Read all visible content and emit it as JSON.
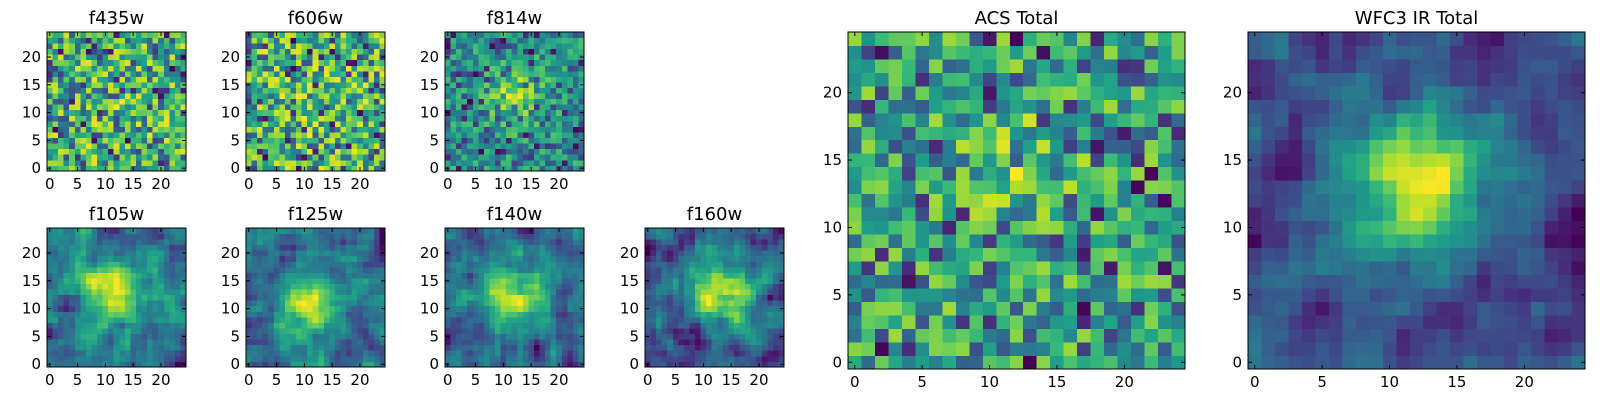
{
  "chart_data": [
    {
      "type": "heatmap",
      "title": "f435w",
      "x_ticks": [
        0,
        5,
        10,
        15,
        20
      ],
      "y_ticks": [
        0,
        5,
        10,
        15,
        20
      ],
      "xlim": [
        -0.5,
        24.5
      ],
      "ylim": [
        -0.5,
        24.5
      ],
      "colormap": "viridis",
      "grid": false,
      "pattern": {
        "seed": 11,
        "noise": 0.95,
        "blob": 0.05,
        "cx": 12,
        "cy": 12,
        "sigma": 4,
        "smooth": 0
      }
    },
    {
      "type": "heatmap",
      "title": "f606w",
      "x_ticks": [
        0,
        5,
        10,
        15,
        20
      ],
      "y_ticks": [
        0,
        5,
        10,
        15,
        20
      ],
      "xlim": [
        -0.5,
        24.5
      ],
      "ylim": [
        -0.5,
        24.5
      ],
      "colormap": "viridis",
      "grid": false,
      "pattern": {
        "seed": 23,
        "noise": 0.95,
        "blob": 0.05,
        "cx": 12,
        "cy": 12,
        "sigma": 4,
        "smooth": 0
      }
    },
    {
      "type": "heatmap",
      "title": "f814w",
      "x_ticks": [
        0,
        5,
        10,
        15,
        20
      ],
      "y_ticks": [
        0,
        5,
        10,
        15,
        20
      ],
      "xlim": [
        -0.5,
        24.5
      ],
      "ylim": [
        -0.5,
        24.5
      ],
      "colormap": "viridis",
      "grid": false,
      "pattern": {
        "seed": 37,
        "noise": 0.7,
        "blob": 0.3,
        "cx": 12,
        "cy": 13,
        "sigma": 3.5,
        "smooth": 0
      }
    },
    {
      "type": "heatmap",
      "title": "f105w",
      "x_ticks": [
        0,
        5,
        10,
        15,
        20
      ],
      "y_ticks": [
        0,
        5,
        10,
        15,
        20
      ],
      "xlim": [
        -0.5,
        24.5
      ],
      "ylim": [
        -0.5,
        24.5
      ],
      "colormap": "viridis",
      "grid": false,
      "pattern": {
        "seed": 41,
        "noise": 0.55,
        "blob": 0.45,
        "cx": 12,
        "cy": 13,
        "sigma": 4,
        "smooth": 1
      }
    },
    {
      "type": "heatmap",
      "title": "f125w",
      "x_ticks": [
        0,
        5,
        10,
        15,
        20
      ],
      "y_ticks": [
        0,
        5,
        10,
        15,
        20
      ],
      "xlim": [
        -0.5,
        24.5
      ],
      "ylim": [
        -0.5,
        24.5
      ],
      "colormap": "viridis",
      "grid": false,
      "pattern": {
        "seed": 53,
        "noise": 0.55,
        "blob": 0.45,
        "cx": 11,
        "cy": 10,
        "sigma": 4,
        "smooth": 1
      }
    },
    {
      "type": "heatmap",
      "title": "f140w",
      "x_ticks": [
        0,
        5,
        10,
        15,
        20
      ],
      "y_ticks": [
        0,
        5,
        10,
        15,
        20
      ],
      "xlim": [
        -0.5,
        24.5
      ],
      "ylim": [
        -0.5,
        24.5
      ],
      "colormap": "viridis",
      "grid": false,
      "pattern": {
        "seed": 67,
        "noise": 0.55,
        "blob": 0.45,
        "cx": 12,
        "cy": 13,
        "sigma": 4.5,
        "smooth": 1
      }
    },
    {
      "type": "heatmap",
      "title": "f160w",
      "x_ticks": [
        0,
        5,
        10,
        15,
        20
      ],
      "y_ticks": [
        0,
        5,
        10,
        15,
        20
      ],
      "xlim": [
        -0.5,
        24.5
      ],
      "ylim": [
        -0.5,
        24.5
      ],
      "colormap": "viridis",
      "grid": false,
      "pattern": {
        "seed": 79,
        "noise": 0.45,
        "blob": 0.55,
        "cx": 13,
        "cy": 13,
        "sigma": 4,
        "smooth": 1
      }
    },
    {
      "type": "heatmap",
      "title": "ACS Total",
      "x_ticks": [
        0,
        5,
        10,
        15,
        20
      ],
      "y_ticks": [
        0,
        5,
        10,
        15,
        20
      ],
      "xlim": [
        -0.5,
        24.5
      ],
      "ylim": [
        -0.5,
        24.5
      ],
      "colormap": "viridis",
      "grid": false,
      "pattern": {
        "seed": 97,
        "noise": 0.8,
        "blob": 0.2,
        "cx": 12,
        "cy": 15,
        "sigma": 3,
        "smooth": 0
      }
    },
    {
      "type": "heatmap",
      "title": "WFC3 IR Total",
      "x_ticks": [
        0,
        5,
        10,
        15,
        20
      ],
      "y_ticks": [
        0,
        5,
        10,
        15,
        20
      ],
      "xlim": [
        -0.5,
        24.5
      ],
      "ylim": [
        -0.5,
        24.5
      ],
      "colormap": "viridis",
      "grid": false,
      "pattern": {
        "seed": 113,
        "noise": 0.35,
        "blob": 0.65,
        "cx": 12,
        "cy": 13,
        "sigma": 3.5,
        "smooth": 1
      }
    }
  ]
}
